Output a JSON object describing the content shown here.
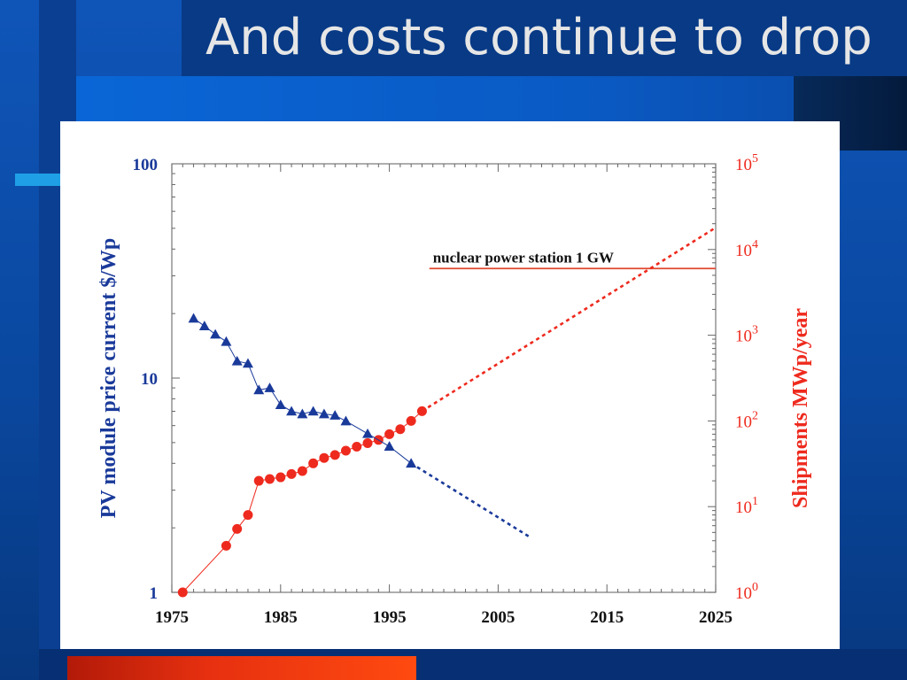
{
  "slide": {
    "title": "And costs continue to drop"
  },
  "colors": {
    "background": "#0d4fa8",
    "dark_band": "#0a2a66",
    "price_series": "#1a3a9a",
    "shipments_series": "#ee2a1e",
    "accent_bar": "#ff3a10"
  },
  "chart_data": {
    "type": "scatter",
    "title": "",
    "xlabel": "",
    "ylabel_left": "PV module price current $/Wp",
    "ylabel_right": "Shipments MWp/year",
    "xlim": [
      1975,
      2025
    ],
    "x_ticks": [
      1975,
      1985,
      1995,
      2005,
      2015,
      2025
    ],
    "x_tick_labels": [
      "1975",
      "1985",
      "1995",
      "2005",
      "2015",
      "2025"
    ],
    "y_left_scale": "log",
    "y_left_lim": [
      1,
      100
    ],
    "y_left_tick_labels": [
      "1",
      "10",
      "100"
    ],
    "y_left_ticks": [
      1,
      10,
      100
    ],
    "y_right_scale": "log",
    "y_right_lim": [
      1,
      100000
    ],
    "y_right_ticks": [
      1,
      10,
      100,
      1000,
      10000,
      100000
    ],
    "y_right_tick_bases": [
      "10",
      "10",
      "10",
      "10",
      "10",
      "10"
    ],
    "y_right_tick_exponents": [
      "0",
      "1",
      "2",
      "3",
      "4",
      "5"
    ],
    "grid": false,
    "annotation": {
      "text": "nuclear power station 1 GW",
      "value": 6000,
      "axis": "right",
      "x_start": 1999,
      "x_end": 2025
    },
    "series": [
      {
        "key": "price",
        "axis": "left",
        "marker": "triangle",
        "x": [
          1977,
          1978,
          1979,
          1980,
          1981,
          1982,
          1983,
          1984,
          1985,
          1986,
          1987,
          1988,
          1989,
          1990,
          1991,
          1993,
          1995,
          1997
        ],
        "y": [
          19,
          17.5,
          16,
          14.8,
          12,
          11.7,
          8.8,
          9,
          7.5,
          7,
          6.8,
          7,
          6.8,
          6.7,
          6.3,
          5.5,
          4.8,
          4
        ],
        "projection": {
          "x": [
            1997,
            2008
          ],
          "y": [
            4,
            1.8
          ]
        }
      },
      {
        "key": "shipments",
        "axis": "right",
        "marker": "circle",
        "x": [
          1976,
          1980,
          1981,
          1982,
          1983,
          1984,
          1985,
          1986,
          1987,
          1988,
          1989,
          1990,
          1991,
          1992,
          1993,
          1994,
          1995,
          1996,
          1997,
          1998
        ],
        "y": [
          1,
          3.5,
          5.5,
          8,
          20,
          21,
          22,
          24,
          26,
          32,
          37,
          40,
          45,
          50,
          55,
          60,
          70,
          80,
          100,
          130
        ],
        "projection": {
          "x": [
            1998,
            2025
          ],
          "y": [
            130,
            18000
          ]
        }
      }
    ]
  }
}
